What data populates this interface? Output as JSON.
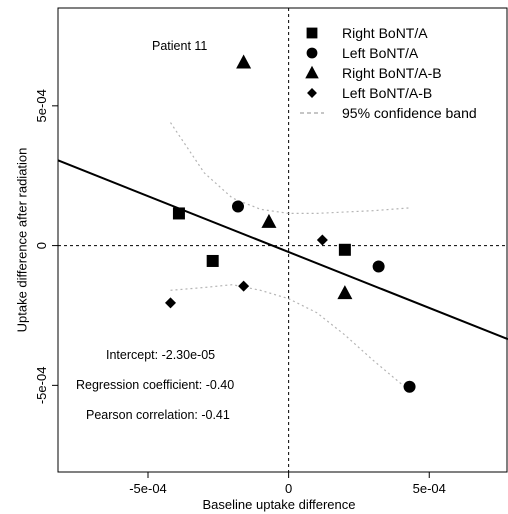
{
  "chart_data": {
    "type": "scatter",
    "title": "",
    "xlabel": "Baseline uptake difference",
    "ylabel": "Uptake difference after radiation",
    "xlim": [
      -0.00082,
      0.00078
    ],
    "ylim": [
      -0.00081,
      0.00085
    ],
    "x_ticks": [
      -0.0005,
      0,
      0.0005
    ],
    "x_tick_labels": [
      "-5e-04",
      "0",
      "5e-04"
    ],
    "y_ticks": [
      -0.0005,
      0,
      0.0005
    ],
    "y_tick_labels": [
      "-5e-04",
      "0",
      "5e-04"
    ],
    "grid": false,
    "legend_position": "top-right",
    "series": [
      {
        "name": "Right BoNT/A",
        "marker": "square",
        "points": [
          {
            "x": -0.00039,
            "y": 0.000115
          },
          {
            "x": -0.00027,
            "y": -5.5e-05
          },
          {
            "x": 0.0002,
            "y": -1.5e-05
          }
        ]
      },
      {
        "name": "Left BoNT/A",
        "marker": "circle",
        "points": [
          {
            "x": -0.00018,
            "y": 0.00014
          },
          {
            "x": 0.00032,
            "y": -7.5e-05
          },
          {
            "x": 0.00043,
            "y": -0.000505
          }
        ]
      },
      {
        "name": "Right BoNT/A-B",
        "marker": "triangle",
        "points": [
          {
            "x": -0.00016,
            "y": 0.000655
          },
          {
            "x": -7e-05,
            "y": 8.5e-05
          },
          {
            "x": 0.0002,
            "y": -0.00017
          }
        ]
      },
      {
        "name": "Left BoNT/A-B",
        "marker": "diamond",
        "points": [
          {
            "x": -0.00042,
            "y": -0.000205
          },
          {
            "x": -0.00016,
            "y": -0.000145
          },
          {
            "x": 0.00012,
            "y": 2e-05
          }
        ]
      }
    ],
    "regression_line": {
      "intercept": -2.3e-05,
      "slope": -0.4
    },
    "confidence_band_label": "95% confidence band",
    "confidence_band_upper": [
      {
        "x": -0.00042,
        "y": 0.00044
      },
      {
        "x": -0.0003,
        "y": 0.00026
      },
      {
        "x": -0.0002,
        "y": 0.00017
      },
      {
        "x": -0.0001,
        "y": 0.00013
      },
      {
        "x": 0.0,
        "y": 0.000115
      },
      {
        "x": 0.0001,
        "y": 0.000115
      },
      {
        "x": 0.0002,
        "y": 0.00012
      },
      {
        "x": 0.0003,
        "y": 0.000125
      },
      {
        "x": 0.00043,
        "y": 0.000135
      }
    ],
    "confidence_band_lower": [
      {
        "x": -0.00042,
        "y": -0.00016
      },
      {
        "x": -0.0003,
        "y": -0.00015
      },
      {
        "x": -0.0002,
        "y": -0.00014
      },
      {
        "x": -0.0001,
        "y": -0.00016
      },
      {
        "x": 0.0,
        "y": -0.00019
      },
      {
        "x": 0.0001,
        "y": -0.00024
      },
      {
        "x": 0.0002,
        "y": -0.00032
      },
      {
        "x": 0.0003,
        "y": -0.00041
      },
      {
        "x": 0.00043,
        "y": -0.00052
      }
    ],
    "annotations": {
      "patient": {
        "text": "Patient 11"
      },
      "intercept": "Intercept: -2.30e-05",
      "regression": "Regression coefficient: -0.40",
      "pearson": "Pearson correlation: -0.41"
    },
    "colors": {
      "points": "#000000",
      "regression_line": "#000000",
      "confidence_band": "#b4b4b4",
      "zero_lines": "#000000"
    }
  }
}
